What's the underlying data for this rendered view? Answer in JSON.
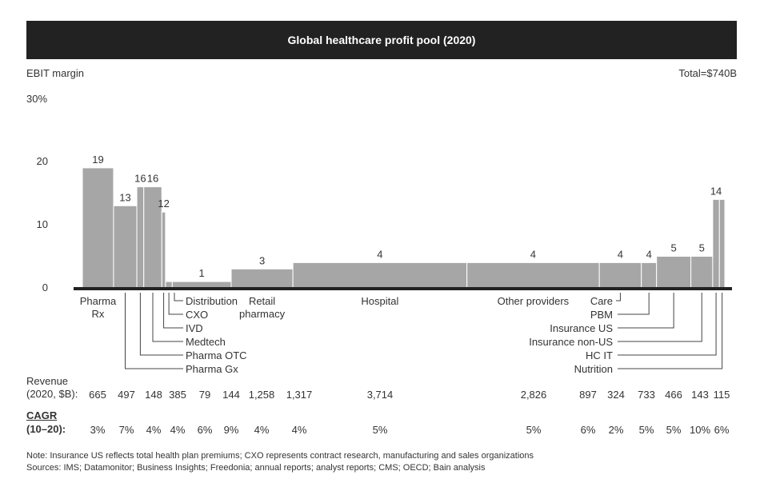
{
  "title": "Global healthcare profit pool (2020)",
  "y_axis_label": "EBIT margin",
  "total_label": "Total=$740B",
  "y_top_label": "30%",
  "revenue_label_1": "Revenue",
  "revenue_label_2": "(2020, $B):",
  "cagr_label_1": "CAGR",
  "cagr_label_2": "(10–20):",
  "note_1": "Note: Insurance US reflects total health plan premiums; CXO represents contract research, manufacturing and sales organizations",
  "note_2": "Sources: IMS; Datamonitor; Business Insights; Freedonia; annual reports; analyst reports; CMS; OECD; Bain analysis",
  "colors": {
    "bar": "#a6a6a6",
    "bar_edge": "#ffffff",
    "baseline": "#222222",
    "title_bg": "#222222"
  },
  "chart_data": {
    "type": "bar",
    "variable_width": true,
    "y_ticks": [
      "0",
      "10",
      "20"
    ],
    "ylim": [
      0,
      30
    ],
    "categories": [
      "Pharma Rx",
      "Pharma Gx",
      "Pharma OTC",
      "Medtech",
      "IVD",
      "CXO",
      "Distribution",
      "Retail pharmacy",
      "Hospital",
      "Other providers",
      "Care",
      "PBM",
      "Insurance US",
      "Insurance non-US",
      "HC IT",
      "Nutrition"
    ],
    "margins": [
      19,
      13,
      16,
      16,
      12,
      1,
      1,
      3,
      4,
      4,
      4,
      4,
      5,
      5,
      14,
      14
    ],
    "margin_labels": [
      "19",
      "13",
      "16",
      "16",
      "12",
      "",
      "1",
      "3",
      "4",
      "4",
      "4",
      "4",
      "5",
      "5",
      "14",
      ""
    ],
    "revenue": [
      665,
      497,
      148,
      385,
      79,
      144,
      1258,
      1317,
      3714,
      2826,
      897,
      324,
      733,
      466,
      143,
      115
    ],
    "revenue_labels": [
      "665",
      "497",
      "148",
      "385",
      "79",
      "144",
      "1,258",
      "1,317",
      "3,714",
      "2,826",
      "897",
      "324",
      "733",
      "466",
      "143",
      "115"
    ],
    "cagr_labels": [
      "3%",
      "7%",
      "4%",
      "4%",
      "6%",
      "9%",
      "4%",
      "4%",
      "5%",
      "5%",
      "6%",
      "2%",
      "5%",
      "5%",
      "10%",
      "6%"
    ],
    "category_labels": {
      "pharma_rx_1": "Pharma",
      "pharma_rx_2": "Rx",
      "retail_1": "Retail",
      "retail_2": "pharmacy",
      "hospital": "Hospital",
      "other_providers": "Other providers",
      "distribution": "Distribution",
      "cxo": "CXO",
      "ivd": "IVD",
      "medtech": "Medtech",
      "pharma_otc": "Pharma OTC",
      "pharma_gx": "Pharma Gx",
      "care": "Care",
      "pbm": "PBM",
      "insurance_us": "Insurance US",
      "insurance_non_us": "Insurance non-US",
      "hc_it": "HC IT",
      "nutrition": "Nutrition"
    }
  }
}
